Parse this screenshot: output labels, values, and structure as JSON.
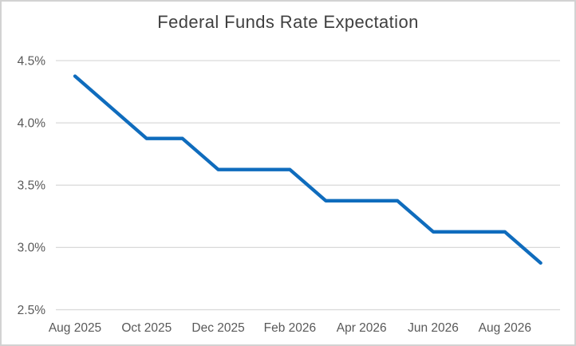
{
  "colors": {
    "line": "#0F6CBD",
    "gridline": "#D9D9D9",
    "axis_label": "#595959",
    "title": "#404040",
    "border": "#D2D2D2",
    "background": "#FFFFFF"
  },
  "chart_data": {
    "type": "line",
    "title": "Federal Funds Rate Expectation",
    "x": [
      "Aug 2025",
      "Sep 2025",
      "Oct 2025",
      "Nov 2025",
      "Dec 2025",
      "Jan 2026",
      "Feb 2026",
      "Mar 2026",
      "Apr 2026",
      "May 2026",
      "Jun 2026",
      "Jul 2026",
      "Aug 2026",
      "Sep 2026"
    ],
    "series": [
      {
        "name": "Federal Funds Rate Expectation",
        "values": [
          4.375,
          4.125,
          3.875,
          3.875,
          3.625,
          3.625,
          3.625,
          3.375,
          3.375,
          3.375,
          3.125,
          3.125,
          3.125,
          2.875
        ]
      }
    ],
    "x_tick_labels": [
      "Aug 2025",
      "Oct 2025",
      "Dec 2025",
      "Feb 2026",
      "Apr 2026",
      "Jun 2026",
      "Aug 2026"
    ],
    "y_ticks": [
      4.5,
      4.0,
      3.5,
      3.0,
      2.5
    ],
    "y_tick_labels": [
      "4.5%",
      "4.0%",
      "3.5%",
      "3.0%",
      "2.5%"
    ],
    "ylim": [
      2.5,
      4.5
    ],
    "xlabel": "",
    "ylabel": "",
    "grid": "horizontal-only",
    "legend": "none",
    "markers": "none"
  }
}
